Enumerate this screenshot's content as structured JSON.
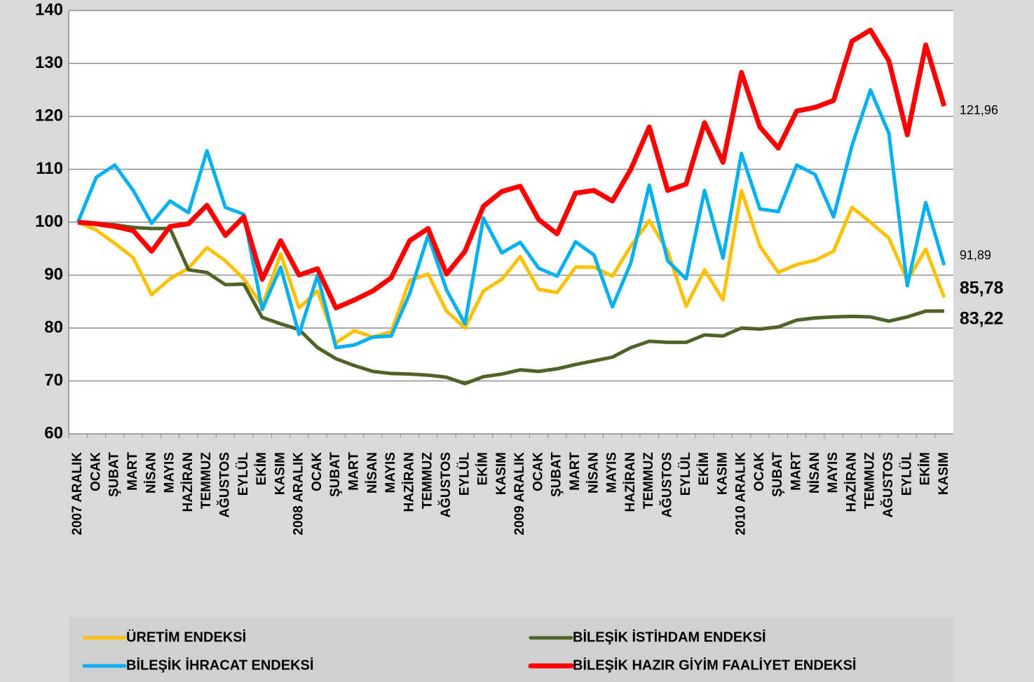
{
  "chart_data": {
    "type": "line",
    "categories": [
      "2007 ARALIK",
      "OCAK",
      "ŞUBAT",
      "MART",
      "NİSAN",
      "MAYIS",
      "HAZİRAN",
      "TEMMUZ",
      "AĞUSTOS",
      "EYLÜL",
      "EKİM",
      "KASIM",
      "2008 ARALIK",
      "OCAK",
      "ŞUBAT",
      "MART",
      "NİSAN",
      "MAYIS",
      "HAZİRAN",
      "TEMMUZ",
      "AĞUSTOS",
      "EYLÜL",
      "EKİM",
      "KASIM",
      "2009 ARALIK",
      "OCAK",
      "ŞUBAT",
      "MART",
      "NİSAN",
      "MAYIS",
      "HAZİRAN",
      "TEMMUZ",
      "AĞUSTOS",
      "EYLÜL",
      "EKİM",
      "KASIM",
      "2010 ARALIK",
      "OCAK",
      "ŞUBAT",
      "MART",
      "NİSAN",
      "MAYIS",
      "HAZİRAN",
      "TEMMUZ",
      "AĞUSTOS",
      "EYLÜL",
      "EKİM",
      "KASIM"
    ],
    "series": [
      {
        "name": "ÜRETİM ENDEKSİ",
        "color": "#ffc000",
        "label_bold": true,
        "values": [
          100,
          98.5,
          96,
          93.3,
          86.3,
          89.3,
          91.3,
          95.2,
          92.7,
          89.3,
          84.2,
          94,
          83.8,
          87,
          77.2,
          79.5,
          78.3,
          79.3,
          89,
          90.2,
          83.2,
          80,
          87,
          89.2,
          93.5,
          87.3,
          86.7,
          91.5,
          91.5,
          89.8,
          95.5,
          100.3,
          94.5,
          84.1,
          91,
          85.3,
          106,
          95.5,
          90.5,
          92,
          92.8,
          94.5,
          102.8,
          100,
          97,
          89,
          94.9,
          85.78
        ],
        "value_labels": [
          null,
          null,
          null,
          null,
          null,
          null,
          null,
          null,
          null,
          null,
          null,
          null,
          null,
          null,
          null,
          null,
          null,
          null,
          null,
          null,
          null,
          null,
          null,
          null,
          null,
          null,
          null,
          null,
          null,
          null,
          null,
          null,
          null,
          null,
          null,
          null,
          null,
          null,
          null,
          null,
          null,
          null,
          null,
          null,
          null,
          null,
          null,
          "85,78"
        ]
      },
      {
        "name": "BİLEŞİK İSTİHDAM ENDEKSİ",
        "color": "#4f6228",
        "label_bold": true,
        "values": [
          100,
          99.7,
          99.5,
          99,
          98.8,
          98.8,
          91,
          90.5,
          88.2,
          88.3,
          82,
          80.8,
          79.7,
          76.3,
          74.2,
          72.9,
          71.8,
          71.4,
          71.3,
          71.1,
          70.7,
          69.5,
          70.8,
          71.3,
          72.1,
          71.8,
          72.3,
          73.1,
          73.8,
          74.5,
          76.3,
          77.5,
          77.3,
          77.3,
          78.7,
          78.5,
          80,
          79.8,
          80.2,
          81.5,
          81.9,
          82.1,
          82.2,
          82.1,
          81.3,
          82.1,
          83.2,
          83.22
        ],
        "value_labels": [
          null,
          null,
          null,
          null,
          null,
          null,
          null,
          null,
          null,
          null,
          null,
          null,
          null,
          null,
          null,
          null,
          null,
          null,
          null,
          null,
          null,
          null,
          null,
          null,
          null,
          null,
          null,
          null,
          null,
          null,
          null,
          null,
          null,
          null,
          null,
          null,
          null,
          null,
          null,
          null,
          null,
          null,
          null,
          null,
          null,
          null,
          null,
          "83,22"
        ]
      },
      {
        "name": "BİLEŞİK İHRACAT ENDEKSİ",
        "color": "#00b0f0",
        "label_bold": false,
        "values": [
          100,
          108.5,
          110.8,
          106,
          99.8,
          104,
          101.8,
          113.5,
          102.8,
          101.5,
          83.5,
          91.5,
          78.8,
          90,
          76.3,
          76.8,
          78.3,
          78.5,
          86.5,
          97.5,
          87.2,
          80.8,
          100.8,
          94.2,
          96.2,
          91.3,
          89.8,
          96.3,
          93.8,
          84,
          92.3,
          107,
          92.7,
          89.3,
          106,
          93.2,
          113,
          102.5,
          102,
          110.8,
          109,
          101,
          114.5,
          125,
          116.8,
          88,
          103.7,
          91.89
        ],
        "value_labels": [
          null,
          null,
          null,
          null,
          null,
          null,
          null,
          null,
          null,
          null,
          null,
          null,
          null,
          null,
          null,
          null,
          null,
          null,
          null,
          null,
          null,
          null,
          null,
          null,
          null,
          null,
          null,
          null,
          null,
          null,
          null,
          null,
          null,
          null,
          null,
          null,
          null,
          null,
          null,
          null,
          null,
          null,
          null,
          null,
          null,
          null,
          null,
          "91,89"
        ]
      },
      {
        "name": "BİLEŞİK HAZIR GİYİM FAALİYET ENDEKSİ",
        "color": "#ff0000",
        "label_bold": false,
        "values": [
          100,
          99.7,
          99.2,
          98.4,
          94.5,
          99.2,
          99.7,
          103.2,
          97.5,
          101,
          89.2,
          96.5,
          90,
          91.2,
          83.8,
          85.3,
          87,
          89.5,
          96.5,
          98.8,
          90.2,
          94.5,
          103,
          105.8,
          106.8,
          100.5,
          97.8,
          105.5,
          106,
          104,
          110,
          118,
          106,
          107.2,
          118.8,
          111.3,
          128.3,
          118,
          114,
          121,
          121.7,
          123,
          134.2,
          136.3,
          130.5,
          116.5,
          133.5,
          121.96
        ],
        "value_labels": [
          null,
          null,
          null,
          null,
          null,
          null,
          null,
          null,
          null,
          null,
          null,
          null,
          null,
          null,
          null,
          null,
          null,
          null,
          null,
          null,
          null,
          null,
          null,
          null,
          null,
          null,
          null,
          null,
          null,
          null,
          null,
          null,
          null,
          null,
          null,
          null,
          null,
          null,
          null,
          null,
          null,
          null,
          null,
          null,
          null,
          null,
          null,
          "121,96"
        ]
      }
    ],
    "ylim": [
      60,
      140
    ],
    "yticks": [
      60,
      70,
      80,
      90,
      100,
      110,
      120,
      130,
      140
    ],
    "grid": true,
    "legend": "bottom"
  }
}
